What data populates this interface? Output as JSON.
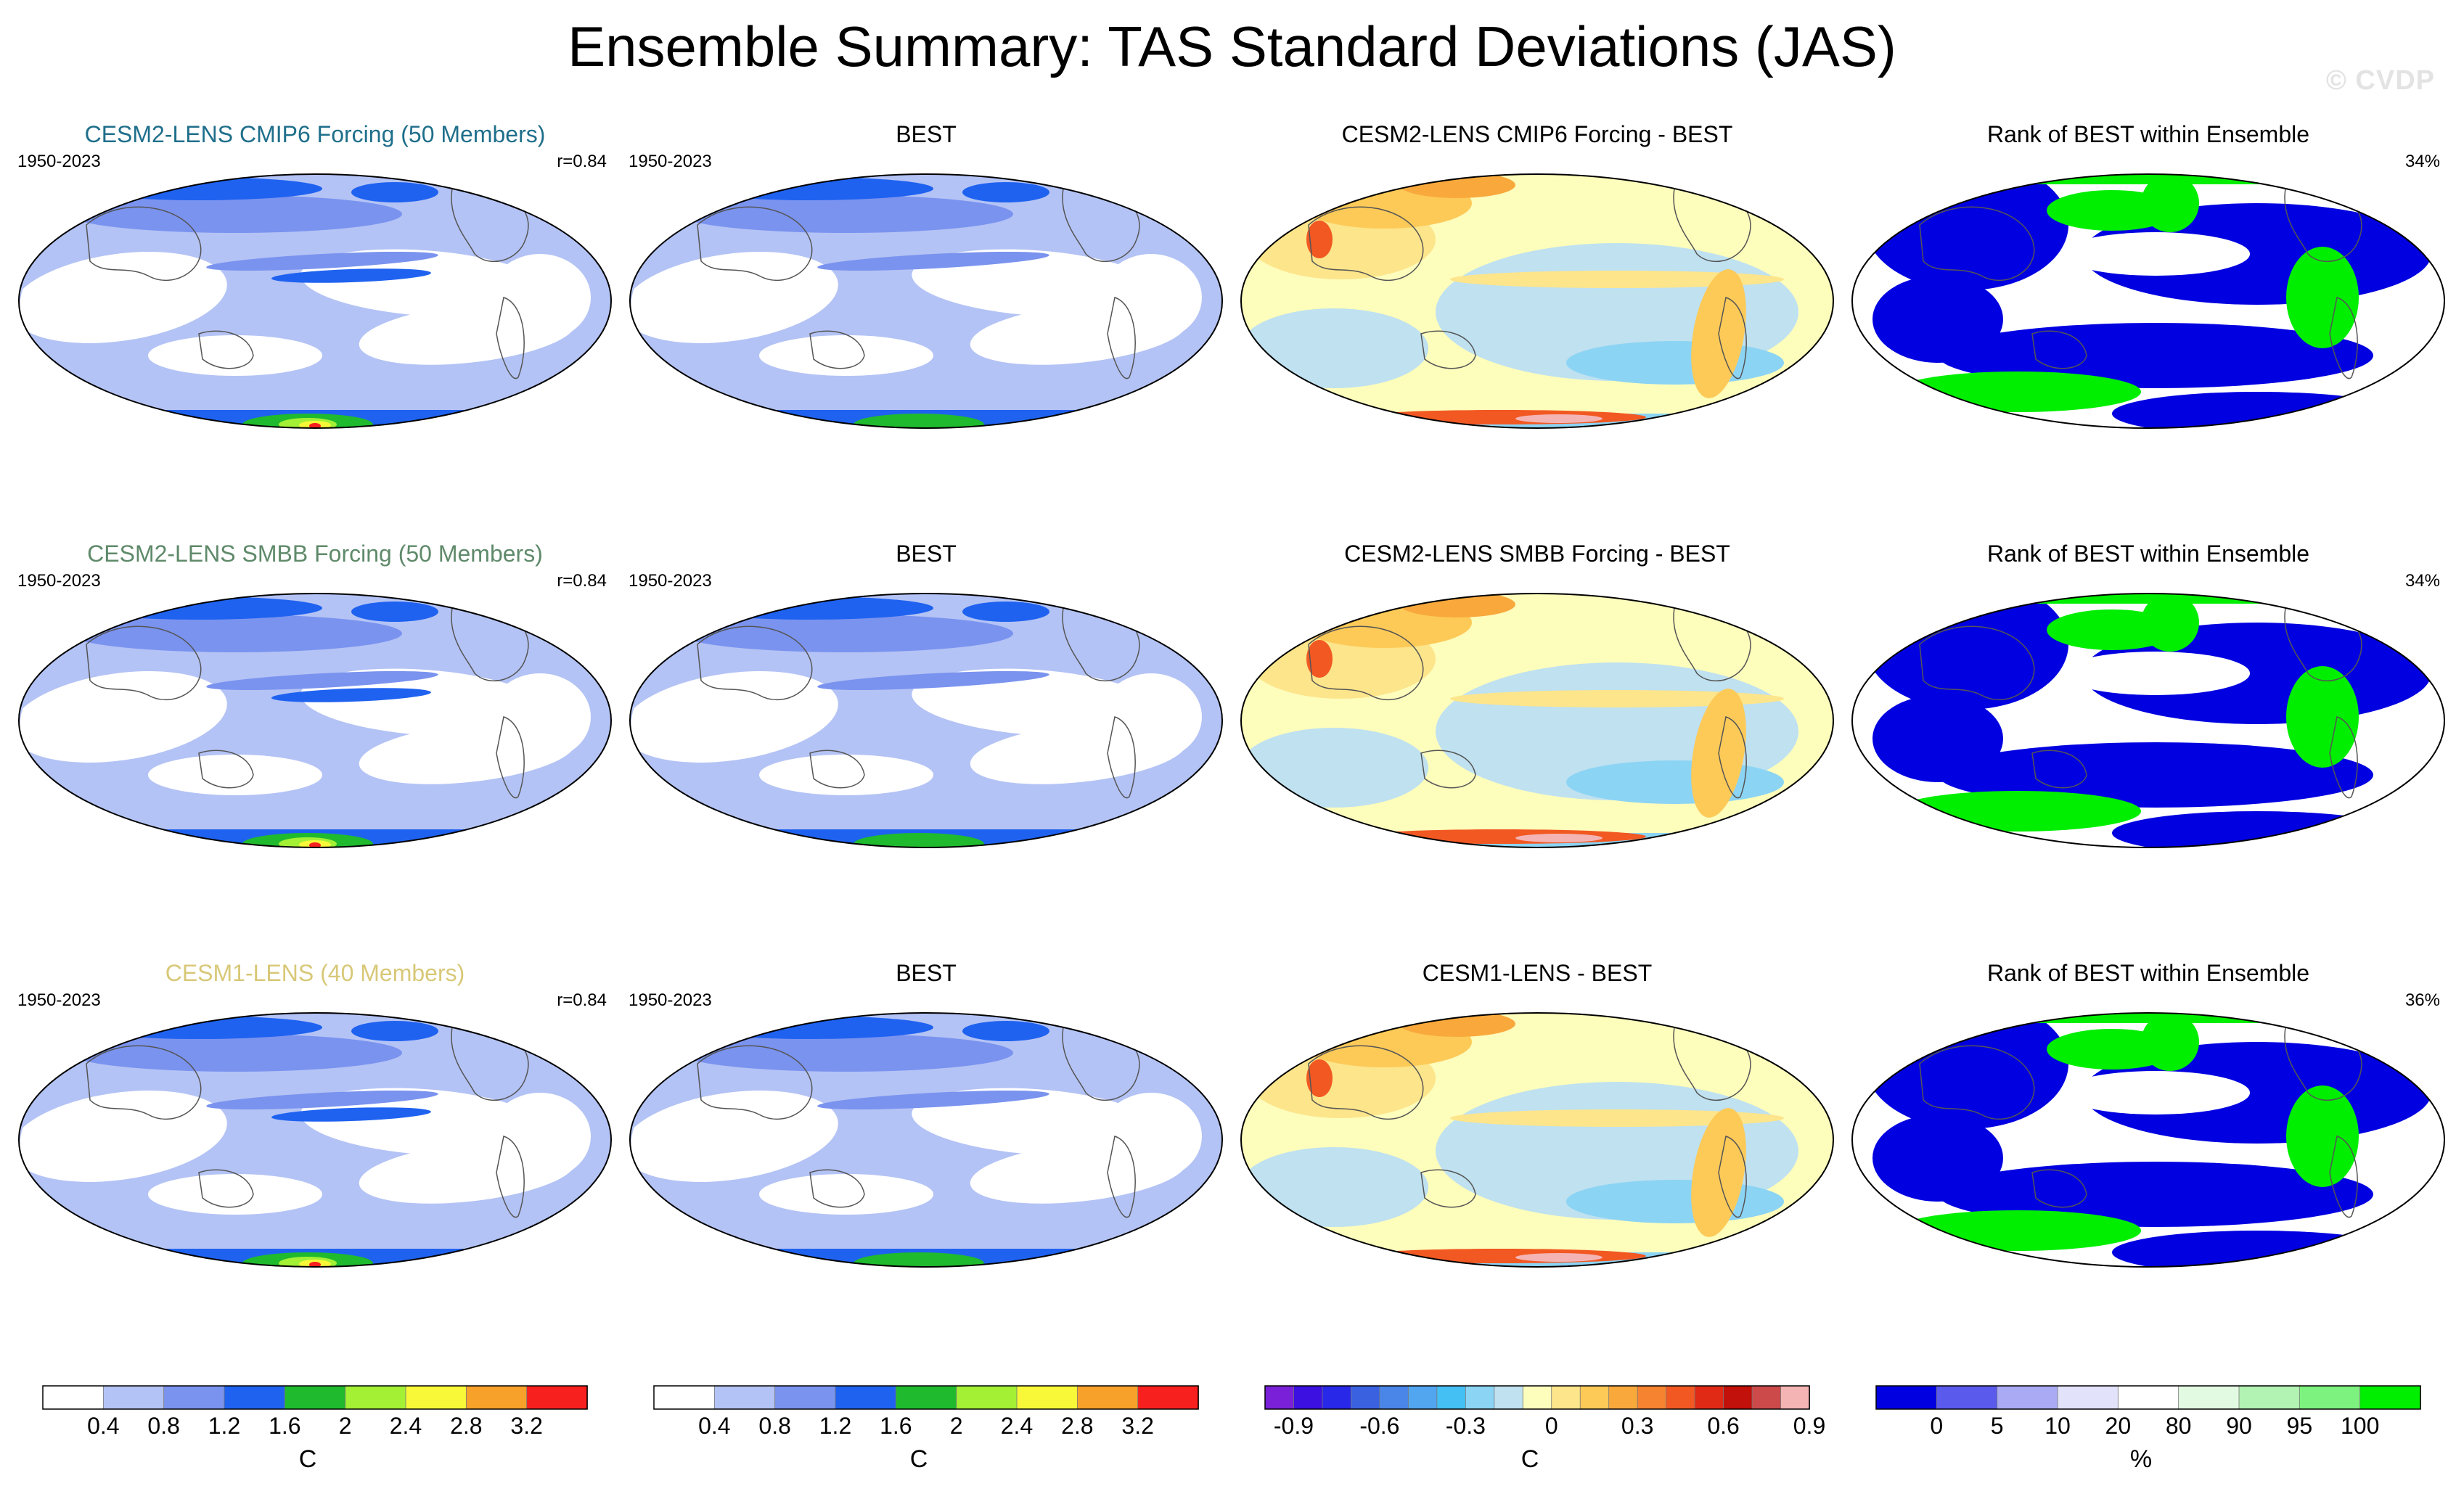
{
  "title": "Ensemble Summary: TAS Standard Deviations (JAS)",
  "watermark": "© CVDP",
  "chart_data": [
    {
      "type": "heatmap",
      "rows": [
        {
          "ensemble_title": "CESM2-LENS CMIP6 Forcing (50 Members)",
          "title_color": "#1f6f8b",
          "period": "1950-2023",
          "pattern_corr": "r=0.84",
          "obs_title": "BEST",
          "diff_title": "CESM2-LENS CMIP6 Forcing - BEST",
          "rank_title": "Rank of BEST within Ensemble",
          "rank_pct": "34%"
        },
        {
          "ensemble_title": "CESM2-LENS SMBB Forcing (50 Members)",
          "title_color": "#5f8a6a",
          "period": "1950-2023",
          "pattern_corr": "r=0.84",
          "obs_title": "BEST",
          "diff_title": "CESM2-LENS SMBB Forcing - BEST",
          "rank_title": "Rank of BEST within Ensemble",
          "rank_pct": "34%"
        },
        {
          "ensemble_title": "CESM1-LENS (40 Members)",
          "title_color": "#d8c878",
          "period": "1950-2023",
          "pattern_corr": "r=0.84",
          "obs_title": "BEST",
          "diff_title": "CESM1-LENS - BEST",
          "rank_title": "Rank of BEST within Ensemble",
          "rank_pct": "36%"
        }
      ]
    }
  ],
  "colorbars": [
    {
      "unit": "C",
      "colors": [
        "#ffffff",
        "#b4c3f5",
        "#7a93ef",
        "#1f62f0",
        "#1fba2e",
        "#a3f035",
        "#f8f839",
        "#f7a12a",
        "#f7201e"
      ],
      "labels": [
        "0.4",
        "0.8",
        "1.2",
        "1.6",
        "2",
        "2.4",
        "2.8",
        "3.2"
      ]
    },
    {
      "unit": "C",
      "colors": [
        "#ffffff",
        "#b4c3f5",
        "#7a93ef",
        "#1f62f0",
        "#1fba2e",
        "#a3f035",
        "#f8f839",
        "#f7a12a",
        "#f7201e"
      ],
      "labels": [
        "0.4",
        "0.8",
        "1.2",
        "1.6",
        "2",
        "2.4",
        "2.8",
        "3.2"
      ]
    },
    {
      "unit": "C",
      "colors": [
        "#7a20d8",
        "#3b10e0",
        "#2828e8",
        "#3a62e0",
        "#4a86e8",
        "#52a6f0",
        "#44c0f4",
        "#8cd4f4",
        "#bfe1f0",
        "#fdfdbc",
        "#fde58b",
        "#fdca58",
        "#f9a93c",
        "#f68330",
        "#f25822",
        "#e02a16",
        "#c2100a",
        "#cc4a4a",
        "#f4b4b4"
      ],
      "labels": [
        "-0.9",
        "-0.6",
        "-0.3",
        "0",
        "0.3",
        "0.6",
        "0.9"
      ]
    },
    {
      "unit": "%",
      "colors": [
        "#0000e0",
        "#5a5aec",
        "#aaaaf4",
        "#e2e2fa",
        "#ffffff",
        "#e2fae2",
        "#b2f2b2",
        "#7ef27e",
        "#00ee00"
      ],
      "labels": [
        "0",
        "5",
        "10",
        "20",
        "80",
        "90",
        "95",
        "100"
      ]
    }
  ]
}
